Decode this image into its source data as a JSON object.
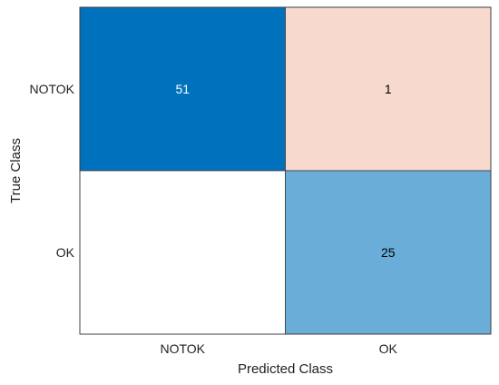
{
  "chart_data": {
    "type": "heatmap",
    "title": "",
    "xlabel": "Predicted Class",
    "ylabel": "True Class",
    "x_categories": [
      "NOTOK",
      "OK"
    ],
    "y_categories": [
      "NOTOK",
      "OK"
    ],
    "cells": [
      {
        "true": "NOTOK",
        "predicted": "NOTOK",
        "value": 51,
        "color": "#0072BD",
        "text_color": "#ffffff"
      },
      {
        "true": "NOTOK",
        "predicted": "OK",
        "value": 1,
        "color": "#F8D9CD",
        "text_color": "#000000"
      },
      {
        "true": "OK",
        "predicted": "NOTOK",
        "value": 0,
        "color": "#ffffff",
        "text_color": "#000000"
      },
      {
        "true": "OK",
        "predicted": "OK",
        "value": 25,
        "color": "#6AADD8",
        "text_color": "#000000"
      }
    ],
    "grid": true
  }
}
